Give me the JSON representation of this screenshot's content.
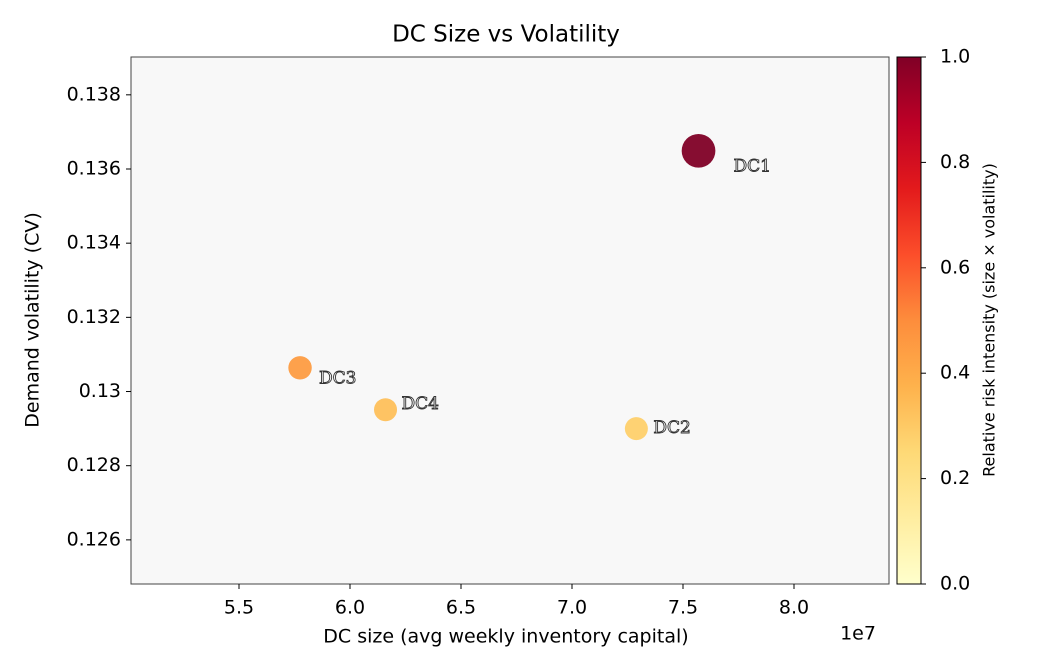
{
  "chart_data": {
    "type": "scatter",
    "title": "DC Size vs Volatility",
    "x_label": "DC size (avg weekly inventory capital)",
    "y_label": "Demand volatility (CV)",
    "x_offset_label": "1e7",
    "point_labels": [
      "DC1",
      "DC2",
      "DC3",
      "DC4"
    ],
    "x": [
      75700000,
      72900000,
      57750000,
      61600000
    ],
    "y": [
      0.13649,
      0.129,
      0.13064,
      0.12951
    ],
    "sizes": [
      580,
      270,
      280,
      270
    ],
    "color_values": [
      1.0,
      0.28,
      0.45,
      0.33
    ],
    "colormap": [
      "#ffffcc",
      "#ffeda0",
      "#fed976",
      "#feb24c",
      "#fd8d3c",
      "#fc4e2a",
      "#e31a1c",
      "#bd0026",
      "#800026"
    ],
    "xlim": [
      50135000,
      84280000
    ],
    "xticks": [
      {
        "value": 55000000,
        "label": "5.5"
      },
      {
        "value": 60000000,
        "label": "6.0"
      },
      {
        "value": 65000000,
        "label": "6.5"
      },
      {
        "value": 70000000,
        "label": "7.0"
      },
      {
        "value": 75000000,
        "label": "7.5"
      },
      {
        "value": 80000000,
        "label": "8.0"
      }
    ],
    "ylim": [
      0.12481,
      0.13902
    ],
    "yticks": [
      0.126,
      0.128,
      0.13,
      0.132,
      0.134,
      0.136,
      0.138
    ],
    "colorbar_label": "Relative risk intensity (size × volatility)",
    "clim": [
      0,
      1
    ],
    "cticks": [
      {
        "value": 0,
        "label": "0.0"
      },
      0.2,
      0.4,
      0.6,
      0.8,
      {
        "value": 1,
        "label": "1.0"
      }
    ],
    "plot_background": "#f8f8f8"
  }
}
